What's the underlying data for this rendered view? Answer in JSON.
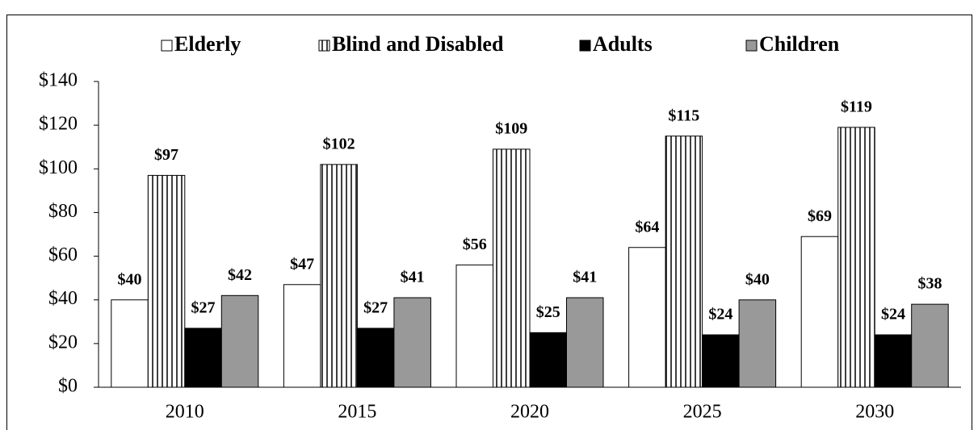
{
  "chart_data": {
    "type": "bar",
    "categories": [
      "2010",
      "2015",
      "2020",
      "2025",
      "2030"
    ],
    "series": [
      {
        "name": "Elderly",
        "color": "#ffffff",
        "values": [
          40,
          47,
          56,
          64,
          69
        ],
        "value_labels": [
          "$40",
          "$47",
          "$56",
          "$64",
          "$69"
        ]
      },
      {
        "name": "Blind and Disabled",
        "color": "#ffffff",
        "pattern": "vertical-lines",
        "values": [
          97,
          102,
          109,
          115,
          119
        ],
        "value_labels": [
          "$97",
          "$102",
          "$109",
          "$115",
          "$119"
        ]
      },
      {
        "name": "Adults",
        "color": "#000000",
        "values": [
          27,
          27,
          25,
          24,
          24
        ],
        "value_labels": [
          "$27",
          "$27",
          "$25",
          "$24",
          "$24"
        ]
      },
      {
        "name": "Children",
        "color": "#999999",
        "values": [
          42,
          41,
          41,
          40,
          38
        ],
        "value_labels": [
          "$42",
          "$41",
          "$41",
          "$40",
          "$38"
        ]
      }
    ],
    "ylim": [
      0,
      140
    ],
    "yticks": [
      {
        "value": 0,
        "label": "$0"
      },
      {
        "value": 20,
        "label": "$20"
      },
      {
        "value": 40,
        "label": "$40"
      },
      {
        "value": 60,
        "label": "$60"
      },
      {
        "value": 80,
        "label": "$80"
      },
      {
        "value": 100,
        "label": "$100"
      },
      {
        "value": 120,
        "label": "$120"
      },
      {
        "value": 140,
        "label": "$140"
      }
    ],
    "legend": "top",
    "grid": false
  }
}
